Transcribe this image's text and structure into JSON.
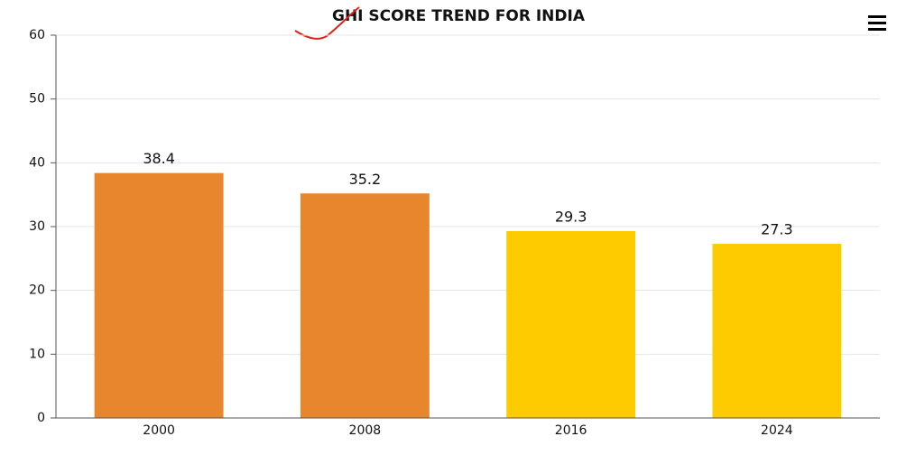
{
  "chart_data": {
    "type": "bar",
    "title": "GHI SCORE TREND FOR INDIA",
    "categories": [
      "2000",
      "2008",
      "2016",
      "2024"
    ],
    "values": [
      38.4,
      35.2,
      29.3,
      27.3
    ],
    "colors": [
      "#e8862e",
      "#e8862e",
      "#fdcb00",
      "#fdcb00"
    ],
    "ylim": [
      0,
      60
    ],
    "yticks": [
      0,
      10,
      20,
      30,
      40,
      50,
      60
    ],
    "grid": true
  }
}
